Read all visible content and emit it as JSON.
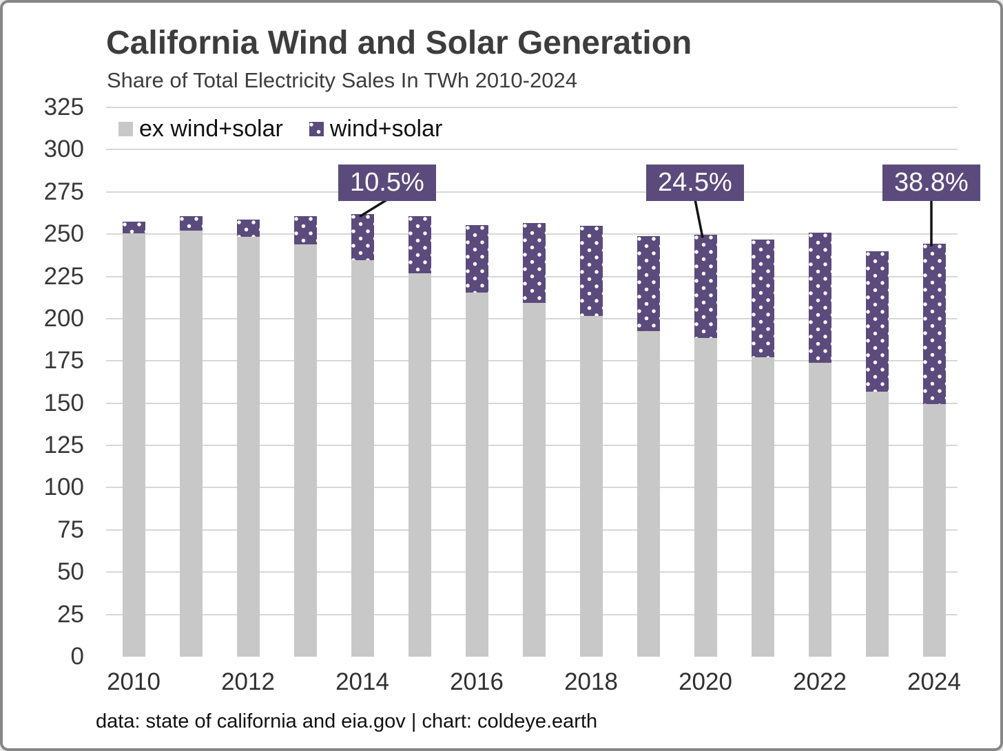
{
  "title": "California Wind and Solar Generation",
  "subtitle": "Share of Total Electricity Sales In TWh 2010-2024",
  "footer": "data: state of california and eia.gov | chart: coldeye.earth",
  "legend": {
    "items": [
      {
        "label": "ex wind+solar",
        "swatch": "gray-solid"
      },
      {
        "label": "wind+solar",
        "swatch": "purple-dotted"
      }
    ]
  },
  "colors": {
    "ex_wind_solar": "#c8c8c8",
    "wind_solar": "#5b4a7c",
    "annotation_bg": "#5b4a7c",
    "annotation_text": "#ffffff",
    "gridline": "#d7d7d7",
    "title_text": "#3d3d3d",
    "axis_text": "#333333",
    "connector": "#141414",
    "frame_border": "#878787"
  },
  "chart_data": {
    "type": "bar",
    "stacked": true,
    "title": "California Wind and Solar Generation",
    "subtitle": "Share of Total Electricity Sales In TWh 2010-2024",
    "categories": [
      "2010",
      "2011",
      "2012",
      "2013",
      "2014",
      "2015",
      "2016",
      "2017",
      "2018",
      "2019",
      "2020",
      "2021",
      "2022",
      "2023",
      "2024"
    ],
    "series": [
      {
        "name": "ex wind+solar",
        "values": [
          250.5,
          252,
          248.5,
          244,
          234.5,
          227,
          215.5,
          209.5,
          201.5,
          192.5,
          188.5,
          177,
          174,
          157,
          149.5
        ]
      },
      {
        "name": "wind+solar",
        "values": [
          7,
          8.5,
          10,
          16.5,
          27.5,
          33.5,
          40,
          47,
          53.5,
          56.5,
          61,
          70,
          77,
          83,
          95
        ]
      }
    ],
    "totals": [
      257.5,
      260.5,
      258.5,
      260.5,
      262,
      260.5,
      255.5,
      256.5,
      255,
      249,
      249.5,
      247,
      251,
      240,
      244.5
    ],
    "ylim": [
      0,
      325
    ],
    "ytick_step": 25,
    "ytick_labels": [
      "0",
      "25",
      "50",
      "75",
      "100",
      "125",
      "150",
      "175",
      "200",
      "225",
      "250",
      "275",
      "300",
      "325"
    ],
    "xtick_labels": [
      "2010",
      "2012",
      "2014",
      "2016",
      "2018",
      "2020",
      "2022",
      "2024"
    ],
    "grid": "horizontal",
    "legend_position": "top-left",
    "annotations": [
      {
        "category": "2014",
        "label": "10.5%"
      },
      {
        "category": "2020",
        "label": "24.5%"
      },
      {
        "category": "2024",
        "label": "38.8%"
      }
    ]
  }
}
